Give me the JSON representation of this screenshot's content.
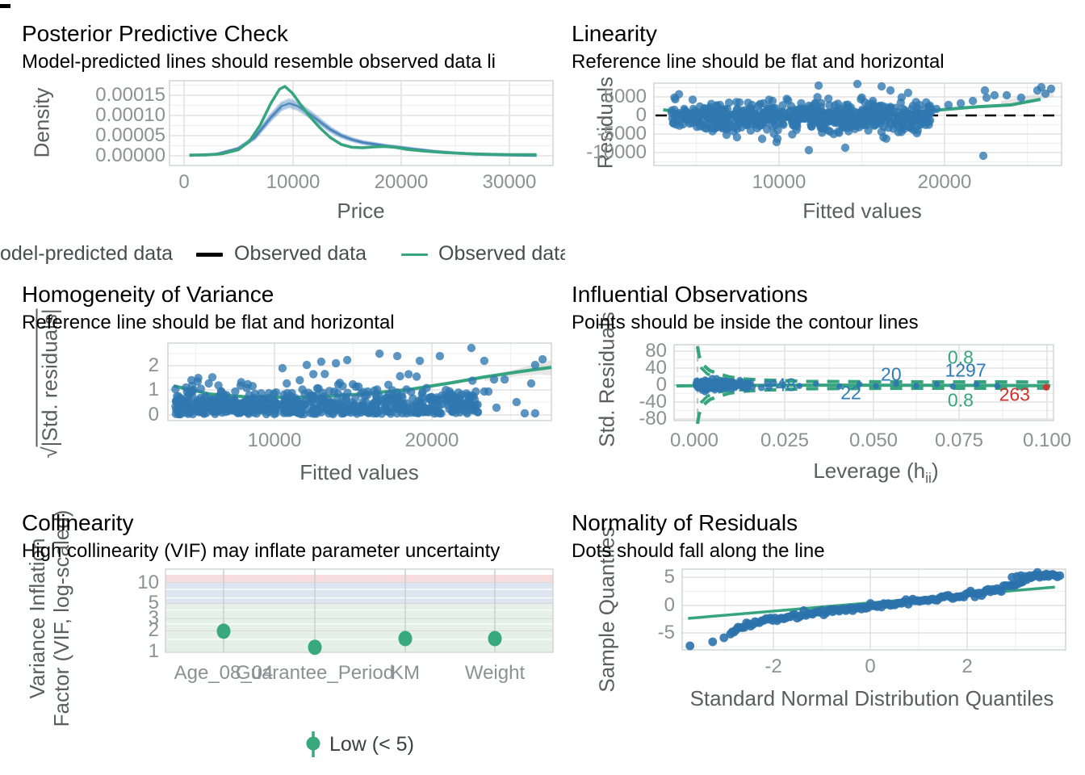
{
  "colors": {
    "scatter_blue": "#2e77b0",
    "band_blue_stroke": "#3f7fb8",
    "line_green": "#36a57f",
    "vif_point": "#38a87f",
    "red": "#d0342c",
    "label_blue": "#2c7bb6",
    "label_green": "#36a57f",
    "vif_band_low": "#e4f0e9",
    "vif_band_moderate": "#dde6f0",
    "vif_band_high": "#f6dcdc",
    "grid_major": "#e2e2e2",
    "grid_minor": "#f0f0f0",
    "panel_border": "#cdd2d2",
    "dashed_black": "#000000",
    "dashed_grey": "#b6bcbc",
    "ci_grey": "#c9c9c9"
  },
  "panels": {
    "ppc": {
      "title": "Posterior Predictive Check",
      "subtitle": "Model-predicted lines should resemble observed data li",
      "ylab": "Density",
      "xlab": "Price",
      "yticks": [
        "0.00015",
        "0.00010",
        "0.00005",
        "0.00000"
      ],
      "xticks": [
        "0",
        "10000",
        "20000",
        "30000"
      ],
      "legend": [
        {
          "label": "odel-predicted data",
          "swatch": "none"
        },
        {
          "label": "Observed data",
          "swatch": "black"
        },
        {
          "label": "Observed data",
          "swatch": "green"
        }
      ]
    },
    "linearity": {
      "title": "Linearity",
      "subtitle": "Reference line should be flat and horizontal",
      "ylab": "Residuals",
      "xlab": "Fitted values",
      "yticks": [
        "5000",
        "0",
        "-5000",
        "-10000"
      ],
      "xticks": [
        "10000",
        "20000"
      ]
    },
    "homogeneity": {
      "title": "Homogeneity of Variance",
      "subtitle": "Reference line should be flat and horizontal",
      "ylab_root": "√",
      "ylab_body": "|Std. residuals|",
      "xlab": "Fitted values",
      "yticks": [
        "2",
        "1",
        "0"
      ],
      "xticks": [
        "10000",
        "20000"
      ]
    },
    "influential": {
      "title": "Influential Observations",
      "subtitle": "Points should be inside the contour lines",
      "ylab": "Std. Residuals",
      "xlab_pre": "Leverage (h",
      "xlab_sub": "ii",
      "xlab_post": ")",
      "yticks": [
        "80",
        "40",
        "0",
        "-40",
        "-80"
      ],
      "xticks": [
        "0.000",
        "0.025",
        "0.050",
        "0.075",
        "0.100"
      ]
    },
    "collinearity": {
      "title": "Collinearity",
      "subtitle": "High collinearity (VIF) may inflate parameter uncertainty",
      "ylab_line1": "Variance Inflation",
      "ylab_line2": "Factor (VIF, log-scaled)",
      "yticks": [
        "10",
        "5",
        "3",
        "2",
        "1"
      ],
      "xticks": [
        "Age_08_04",
        "Guarantee_Period",
        "KM",
        "Weight"
      ],
      "legend_label": "Low (< 5)"
    },
    "normality": {
      "title": "Normality of Residuals",
      "subtitle": "Dots should fall along the line",
      "ylab": "Sample Quantiles",
      "xlab": "Standard Normal Distribution Quantiles",
      "yticks": [
        "5",
        "0",
        "-5"
      ],
      "xticks": [
        "-2",
        "0",
        "2"
      ]
    }
  },
  "chart_data": [
    {
      "id": "ppc",
      "type": "line",
      "title": "Posterior Predictive Check",
      "xlabel": "Price",
      "ylabel": "Density",
      "xlim": [
        0,
        33000
      ],
      "ylim": [
        0,
        0.00018
      ],
      "series": [
        {
          "name": "Observed data",
          "color": "green",
          "x": [
            500,
            2000,
            3500,
            5000,
            6000,
            7000,
            8000,
            8800,
            9300,
            10000,
            10800,
            11500,
            12500,
            13500,
            14500,
            15500,
            16500,
            17500,
            18500,
            19500,
            20500,
            22000,
            24000,
            26000,
            28000,
            30000,
            32500
          ],
          "y": [
            0.2,
            0.2,
            0.5,
            1.5,
            3.5,
            7.5,
            13,
            16.5,
            17.2,
            15.5,
            12.5,
            10,
            7,
            4.5,
            2.8,
            2.1,
            2.0,
            2.2,
            2.3,
            2.1,
            1.6,
            1.2,
            0.8,
            0.55,
            0.4,
            0.3,
            0.3
          ],
          "y_scale": 1e-05
        },
        {
          "name": "Model-predicted data",
          "color": "blue",
          "band": true,
          "x": [
            500,
            3000,
            5000,
            6500,
            8000,
            9000,
            9700,
            10500,
            11500,
            12500,
            13500,
            14500,
            15500,
            16500,
            17500,
            18500,
            19500,
            21000,
            23000,
            25000,
            27000,
            29000,
            31000,
            32500
          ],
          "y": [
            0.1,
            0.4,
            1.8,
            4.5,
            9.5,
            12.3,
            13.0,
            12.3,
            10.5,
            8.5,
            6.5,
            5.0,
            4.0,
            3.3,
            2.9,
            2.5,
            2.2,
            1.7,
            1.1,
            0.7,
            0.4,
            0.25,
            0.15,
            0.1
          ],
          "y_scale": 1e-05
        }
      ]
    },
    {
      "id": "linearity",
      "type": "scatter",
      "xlabel": "Fitted values",
      "ylabel": "Residuals",
      "zero_line": 0,
      "smooth": {
        "x": [
          3000,
          4000,
          6000,
          8000,
          10000,
          12000,
          14000,
          16000,
          18000,
          20000,
          22000,
          24000,
          25800
        ],
        "y": [
          1500,
          900,
          200,
          -250,
          -450,
          -500,
          -350,
          150,
          800,
          1600,
          2300,
          2800,
          4300
        ]
      },
      "cloud": {
        "n": 640,
        "seed": 7,
        "x_min": 3500,
        "x_max": 19200,
        "x_pow": 0.95,
        "y_mean": -350,
        "y_sd": 2000,
        "y_clip": [
          -6200,
          6000
        ]
      },
      "extra_points": {
        "x": [
          12390,
          14730,
          16200,
          16730,
          17800,
          22440,
          23020,
          11800,
          14000,
          22340,
          9850,
          8980,
          7460,
          6830,
          19510,
          20240,
          20980,
          21710,
          22540,
          23760,
          24630,
          25610,
          25850,
          26100,
          26440
        ],
        "y": [
          7950,
          8390,
          7740,
          6670,
          6020,
          6670,
          5380,
          -9250,
          -8600,
          -10750,
          -7100,
          -6240,
          -5810,
          -5160,
          1720,
          2800,
          3230,
          3870,
          4730,
          5380,
          4730,
          6670,
          7530,
          5810,
          7100
        ]
      }
    },
    {
      "id": "homogeneity",
      "type": "scatter",
      "xlabel": "Fitted values",
      "ylabel": "sqrt(|Std. residuals|)",
      "smooth": {
        "x": [
          3590,
          5900,
          8460,
          12050,
          15640,
          18720,
          21280,
          23330,
          25380,
          26820,
          27590
        ],
        "y": [
          1.18,
          0.85,
          0.72,
          0.72,
          0.85,
          1.05,
          1.31,
          1.54,
          1.74,
          1.87,
          1.93
        ]
      },
      "cloud": {
        "n": 620,
        "seed": 11,
        "x_min": 3700,
        "x_max": 23000,
        "x_pow": 1.05,
        "y_abs_sd": 0.52,
        "y_min": 0.03,
        "y_max": 2.1
      },
      "extra_points": {
        "x": [
          16670,
          17800,
          19230,
          20510,
          22510,
          23330,
          26560,
          27030,
          12050,
          12970,
          13900,
          10510,
          14620,
          23590,
          24100,
          24620,
          25380,
          25900,
          26310,
          26560,
          23330,
          23950
        ],
        "y": [
          2.49,
          2.39,
          2.2,
          2.39,
          2.72,
          2.2,
          2.03,
          2.26,
          2.03,
          2.16,
          2.1,
          1.9,
          2.23,
          0.95,
          0.3,
          1.44,
          0.52,
          0.07,
          1.28,
          0.07,
          0.95,
          1.44
        ]
      }
    },
    {
      "id": "influential",
      "type": "scatter",
      "xlabel": "Leverage (h_ii)",
      "ylabel": "Std. Residuals",
      "cluster": {
        "n": 240,
        "seed": 5,
        "x0": 0.0005,
        "x_sd": 0.0072,
        "x_max": 0.0225,
        "y_sd": 5,
        "y_clip": 16
      },
      "singles": {
        "x": [
          0.0252,
          0.0298,
          0.0345,
          0.0412,
          0.0468,
          0.0515,
          0.0572,
          0.0629,
          0.0687,
          0.0733,
          0.08,
          0.0859
        ],
        "y": [
          2,
          -2,
          3,
          -3,
          2,
          -2,
          3,
          -2,
          2,
          -3,
          2,
          -2
        ]
      },
      "outlier_point": {
        "x": 0.0998,
        "y": -5
      },
      "point_labels": [
        {
          "text": "48",
          "x": 0.026,
          "y": 0,
          "color": "blue"
        },
        {
          "text": "22",
          "x": 0.0444,
          "y": -19,
          "color": "blue"
        },
        {
          "text": "20",
          "x": 0.0558,
          "y": 24,
          "color": "blue"
        },
        {
          "text": "1297",
          "x": 0.0769,
          "y": 34,
          "color": "blue"
        },
        {
          "text": "263",
          "x": 0.0908,
          "y": -23,
          "color": "red"
        }
      ],
      "contour_labels": [
        {
          "text": "0.8",
          "x": 0.0755,
          "y": 65
        },
        {
          "text": "0.8",
          "x": 0.0755,
          "y": -36
        }
      ]
    },
    {
      "id": "collinearity",
      "type": "scatter",
      "categories": [
        "Age_08_04",
        "Guarantee_Period",
        "KM",
        "Weight"
      ],
      "vif": [
        1.97,
        1.15,
        1.54,
        1.54
      ],
      "bands": {
        "low": [
          1,
          5
        ],
        "moderate": [
          5,
          10
        ],
        "high": [
          10,
          13
        ]
      },
      "legend": "Low (< 5)"
    },
    {
      "id": "normality",
      "type": "scatter",
      "xlabel": "Standard Normal Distribution Quantiles",
      "ylabel": "Sample Quantiles",
      "ref_line": {
        "x": [
          -3.7,
          3.75
        ],
        "y": [
          -2.32,
          3.3
        ]
      },
      "curve": {
        "x": [
          -2.84,
          -2.72,
          -2.59,
          -2.39,
          -2.13,
          -1.8,
          -1.36,
          -0.87,
          -0.33,
          0.23,
          0.79,
          1.34,
          1.87,
          2.3,
          2.62,
          2.85,
          3.03,
          3.18,
          3.34,
          3.51,
          3.67,
          3.8
        ],
        "y": [
          -4.93,
          -4.2,
          -3.77,
          -3.19,
          -2.75,
          -2.32,
          -1.74,
          -1.16,
          -0.58,
          0,
          0.58,
          1.16,
          1.74,
          2.32,
          2.9,
          3.48,
          4.06,
          4.64,
          5.07,
          5.36,
          5.51,
          5.65
        ]
      },
      "isolated": {
        "x": [
          -3.66,
          -3.2,
          -2.97,
          3.85
        ],
        "y": [
          -7.25,
          -6.52,
          -5.8,
          5.36
        ]
      },
      "top_cluster": {
        "x": [
          2.88,
          2.98,
          3.06,
          3.15,
          3.24,
          3.33,
          3.42,
          3.55,
          3.62,
          3.7
        ],
        "y": [
          5.07,
          5.22,
          5.36,
          5.22,
          5.36,
          5.43,
          5.36,
          5.43,
          5.51,
          5.58
        ]
      },
      "n_dots": 150,
      "seed": 3
    }
  ]
}
